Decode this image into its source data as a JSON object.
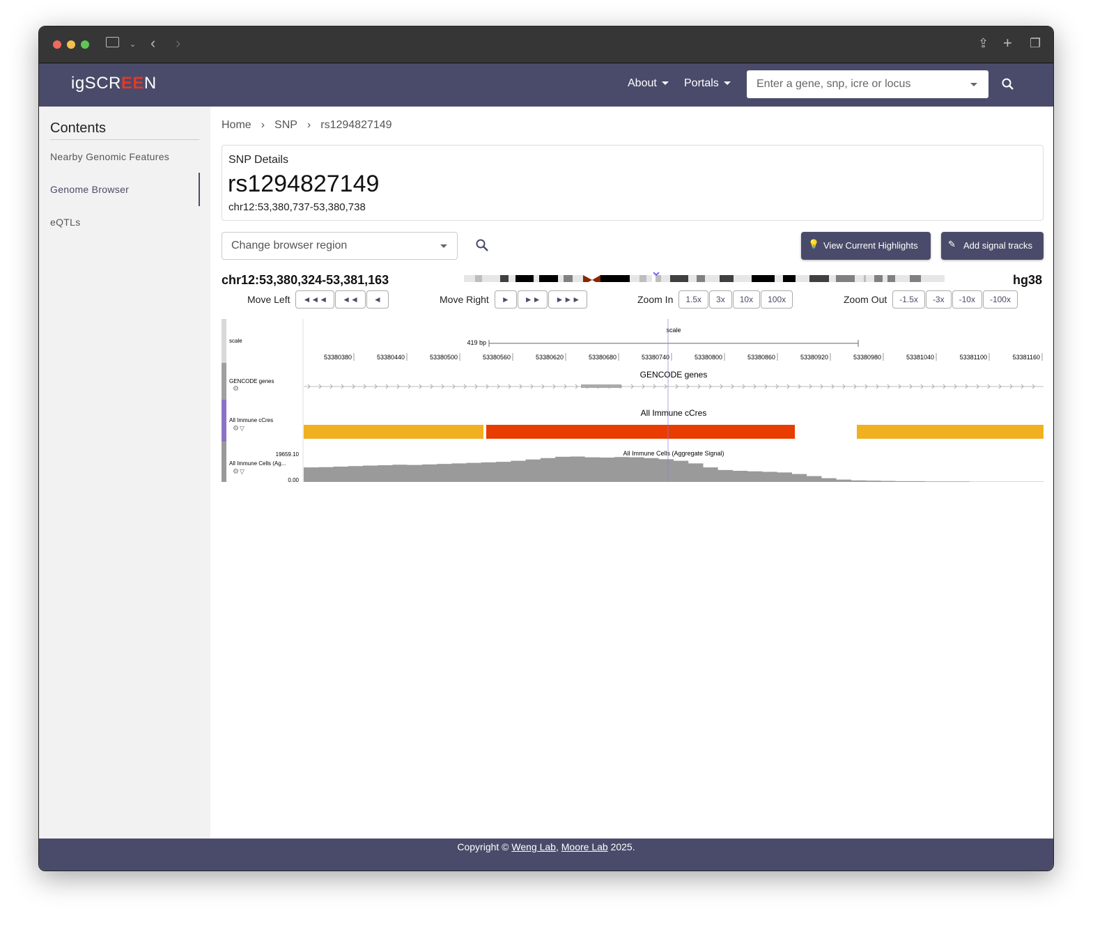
{
  "brand": {
    "logo_text_left": "igSCR",
    "logo_text_mid": "EE",
    "logo_text_right": "N"
  },
  "nav": {
    "about": "About",
    "portals": "Portals",
    "search_placeholder": "Enter a gene, snp, icre or locus"
  },
  "sidebar": {
    "title": "Contents",
    "items": [
      {
        "label": "Nearby Genomic Features"
      },
      {
        "label": "Genome Browser",
        "active": true
      },
      {
        "label": "eQTLs"
      }
    ]
  },
  "breadcrumb": [
    "Home",
    "SNP",
    "rs1294827149"
  ],
  "snp": {
    "heading": "SNP Details",
    "id": "rs1294827149",
    "coords": "chr12:53,380,737-53,380,738"
  },
  "browser": {
    "region_placeholder": "Change browser region",
    "highlights_button": "View Current Highlights",
    "signal_button": "Add signal tracks",
    "location": "chr12:53,380,324-53,381,163",
    "assembly": "hg38",
    "move_left": {
      "label": "Move Left",
      "buttons": [
        "◄◄◄",
        "◄◄",
        "◄"
      ]
    },
    "move_right": {
      "label": "Move Right",
      "buttons": [
        "►",
        "►►",
        "►►►"
      ]
    },
    "zoom_in": {
      "label": "Zoom In",
      "buttons": [
        "1.5x",
        "3x",
        "10x",
        "100x"
      ]
    },
    "zoom_out": {
      "label": "Zoom Out",
      "buttons": [
        "-1.5x",
        "-3x",
        "-10x",
        "-100x"
      ]
    },
    "scale_title": "scale",
    "scale_bar": "419 bp",
    "ruler_ticks": [
      "53380380",
      "53380440",
      "53380500",
      "53380560",
      "53380620",
      "53380680",
      "53380740",
      "53380800",
      "53380860",
      "53380920",
      "53380980",
      "53381040",
      "53381100",
      "53381160"
    ],
    "tracks": [
      {
        "label": "scale",
        "color": "#d9d9d9"
      },
      {
        "label": "GENCODE genes",
        "title": "GENCODE genes",
        "color": "#a0a0a0"
      },
      {
        "label": "All Immune cCres",
        "title": "All Immune cCres",
        "color": "#8d72c4"
      },
      {
        "label": "All Immune Cells (Ag...",
        "title": "All Immune Cells (Aggregate Signal)",
        "color": "#999999",
        "max": "19659.10",
        "min": "0.00"
      }
    ],
    "ccre_colors": {
      "pELS": "#f0b020",
      "PLS": "#e83c00"
    },
    "highlight_color": "#8a7ee0",
    "signal_values_fraction": [
      0.55,
      0.56,
      0.58,
      0.6,
      0.62,
      0.63,
      0.65,
      0.64,
      0.66,
      0.68,
      0.7,
      0.72,
      0.74,
      0.76,
      0.8,
      0.85,
      0.9,
      0.95,
      0.96,
      0.93,
      0.92,
      0.94,
      0.93,
      0.9,
      0.86,
      0.8,
      0.7,
      0.55,
      0.45,
      0.42,
      0.4,
      0.38,
      0.36,
      0.3,
      0.22,
      0.14,
      0.09,
      0.06,
      0.05,
      0.04,
      0.03,
      0.03,
      0.02,
      0.02,
      0.02,
      0.01,
      0.01,
      0.01,
      0.01,
      0.01
    ]
  },
  "footer": {
    "prefix": "Copyright © ",
    "link1": "Weng Lab",
    "sep": ", ",
    "link2": "Moore Lab",
    "suffix": " 2025."
  }
}
